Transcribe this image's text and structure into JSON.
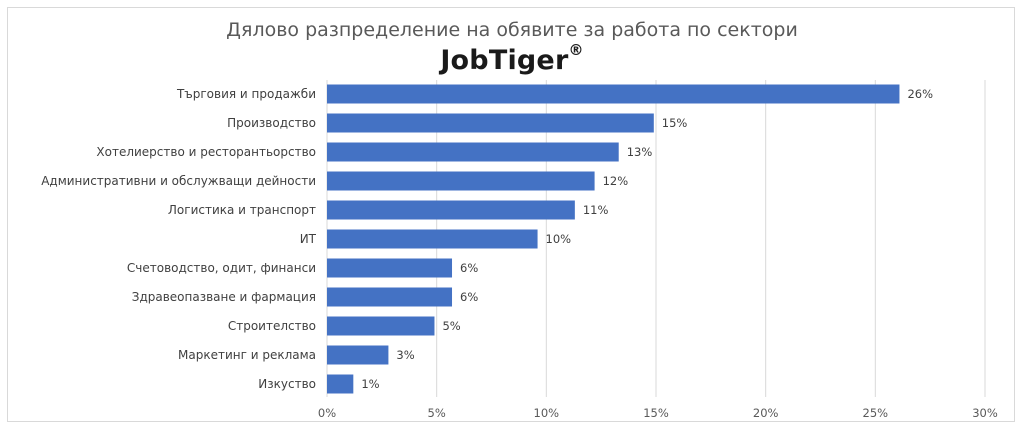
{
  "title": "Дялово разпределение на обявите за работа по сектори",
  "logo": {
    "text": "JobTiger",
    "mark": "®"
  },
  "colors": {
    "bar": "#4472c4",
    "grid": "#d9d9d9",
    "text": "#404040"
  },
  "chart_data": {
    "type": "bar",
    "orientation": "horizontal",
    "categories": [
      "Търговия и продажби",
      "Производство",
      "Хотелиерство и ресторантьорство",
      "Административни и обслужващи дейности",
      "Логистика и транспорт",
      "ИТ",
      "Счетоводство, одит, финанси",
      "Здравеопазване и фармация",
      "Строителство",
      "Маркетинг и реклама",
      "Изкуство"
    ],
    "values": [
      26.1,
      14.9,
      13.3,
      12.2,
      11.3,
      9.6,
      5.7,
      5.7,
      4.9,
      2.8,
      1.2
    ],
    "value_labels": [
      "26%",
      "15%",
      "13%",
      "12%",
      "11%",
      "10%",
      "6%",
      "6%",
      "5%",
      "3%",
      "1%"
    ],
    "xlim": [
      0,
      30
    ],
    "xticks": [
      "0%",
      "5%",
      "10%",
      "15%",
      "20%",
      "25%",
      "30%"
    ],
    "grid": true,
    "legend": "none"
  }
}
